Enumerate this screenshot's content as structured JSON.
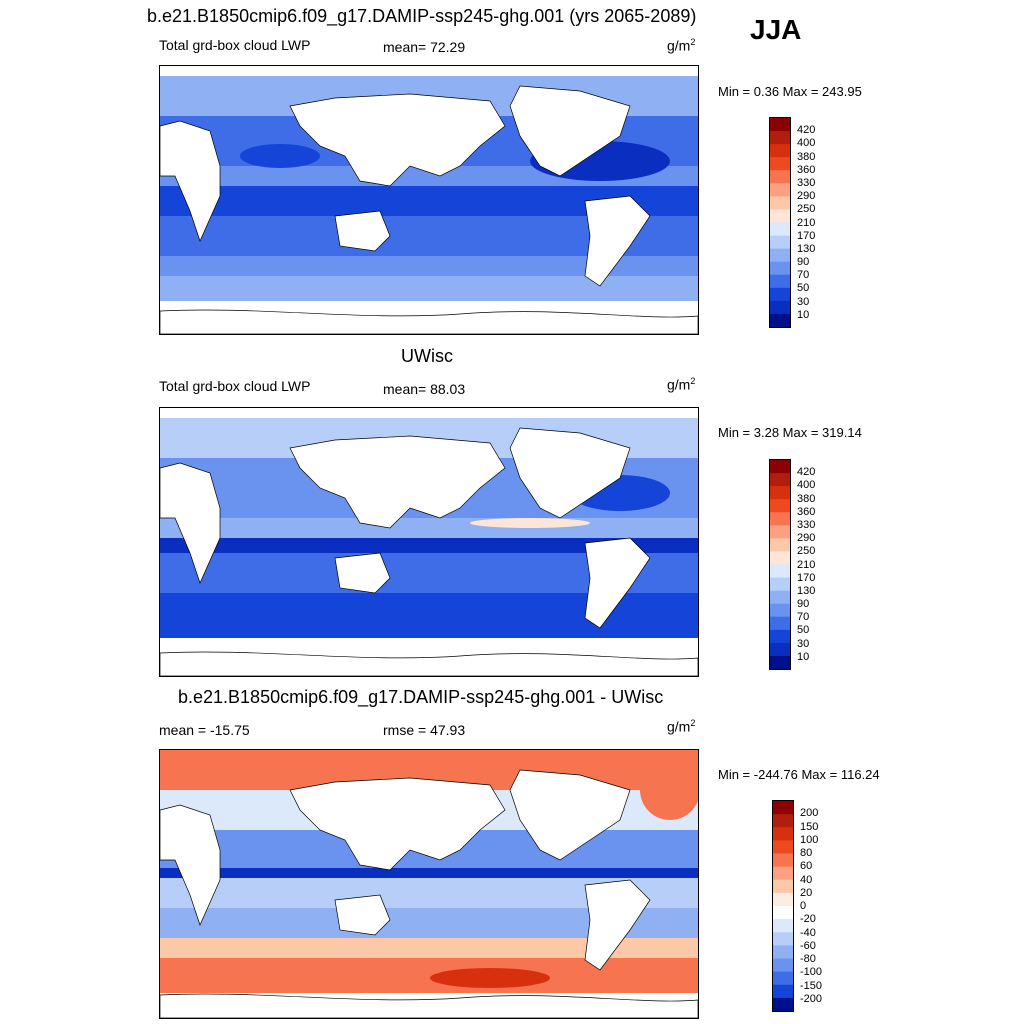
{
  "season": "JJA",
  "panels": [
    {
      "title": "b.e21.B1850cmip6.f09_g17.DAMIP-ssp245-ghg.001 (yrs 2065-2089)",
      "left_label": "Total grd-box cloud LWP",
      "center_label": "mean=  72.29",
      "units": "g/m",
      "units_sup": "2",
      "minmax": "Min =   0.36 Max = 243.95",
      "colorbar_labels": [
        "420",
        "400",
        "380",
        "360",
        "330",
        "290",
        "250",
        "210",
        "170",
        "130",
        "90",
        "70",
        "50",
        "30",
        "10"
      ]
    },
    {
      "title": "UWisc",
      "left_label": "Total grd-box cloud LWP",
      "center_label": "mean=  88.03",
      "units": "g/m",
      "units_sup": "2",
      "minmax": "Min =   3.28 Max = 319.14",
      "colorbar_labels": [
        "420",
        "400",
        "380",
        "360",
        "330",
        "290",
        "250",
        "210",
        "170",
        "130",
        "90",
        "70",
        "50",
        "30",
        "10"
      ]
    },
    {
      "title": "b.e21.B1850cmip6.f09_g17.DAMIP-ssp245-ghg.001 - UWisc",
      "left_label": "mean = -15.75",
      "center_label": "rmse =  47.93",
      "units": "g/m",
      "units_sup": "2",
      "minmax": "Min = -244.76 Max = 116.24",
      "colorbar_labels": [
        "200",
        "150",
        "100",
        "80",
        "60",
        "40",
        "20",
        "0",
        "-20",
        "-40",
        "-60",
        "-80",
        "-100",
        "-150",
        "-200"
      ]
    }
  ],
  "colors": {
    "lwp_scale": [
      "#8b0000",
      "#b01e0e",
      "#d7300f",
      "#ee4a1f",
      "#f77450",
      "#fba080",
      "#fcc8a8",
      "#fde6d8",
      "#dbe9fb",
      "#b7cff8",
      "#8fb1f4",
      "#6a92ef",
      "#3f6de8",
      "#1444d8",
      "#0a2ec0",
      "#000f8a"
    ],
    "diff_scale": [
      "#8b0000",
      "#b01e0e",
      "#d7300f",
      "#ee4a1f",
      "#f77450",
      "#fba080",
      "#fcc8a8",
      "#fdece2",
      "#ffffff",
      "#dbe9fb",
      "#b7cff8",
      "#8fb1f4",
      "#6a92ef",
      "#3f6de8",
      "#1444d8",
      "#000f8a"
    ],
    "land": "#ffffff"
  }
}
